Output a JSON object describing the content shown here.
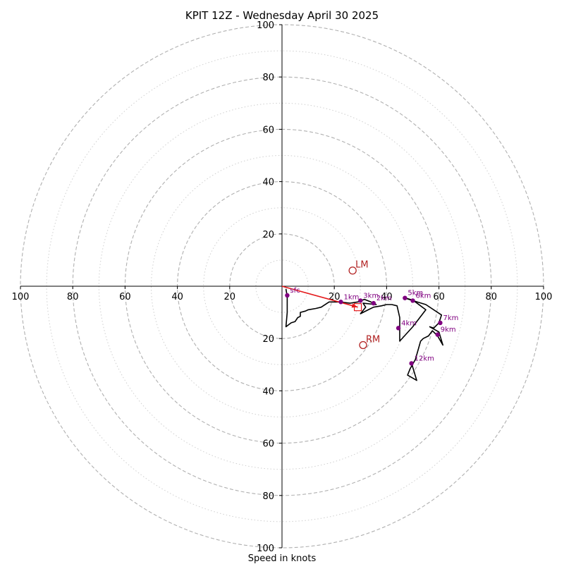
{
  "chart_data": {
    "type": "hodograph",
    "title": "KPIT 12Z - Wednesday April 30 2025",
    "xlabel": "Speed in knots",
    "range": [
      -100,
      100
    ],
    "rings_dashed": [
      20,
      40,
      60,
      80,
      100
    ],
    "rings_dotted": [
      10,
      30,
      50,
      70,
      90
    ],
    "x_tick_labels": [
      "100",
      "80",
      "60",
      "40",
      "20",
      "20",
      "40",
      "60",
      "80",
      "100"
    ],
    "y_tick_labels": [
      "100",
      "80",
      "60",
      "40",
      "20",
      "20",
      "40",
      "60",
      "80",
      "100"
    ],
    "hodograph_trace": [
      [
        1.5,
        -1
      ],
      [
        2,
        -4
      ],
      [
        2,
        -10
      ],
      [
        1.5,
        -15.5
      ],
      [
        3.5,
        -14
      ],
      [
        5,
        -13.5
      ],
      [
        6,
        -12
      ],
      [
        7,
        -11.5
      ],
      [
        7,
        -10
      ],
      [
        9,
        -9.5
      ],
      [
        10,
        -9
      ],
      [
        13,
        -8.5
      ],
      [
        15,
        -8
      ],
      [
        18,
        -6
      ],
      [
        22,
        -6
      ],
      [
        26,
        -6.5
      ],
      [
        29,
        -6
      ],
      [
        31.5,
        -5
      ],
      [
        34,
        -6
      ],
      [
        36,
        -7
      ],
      [
        31,
        -6.5
      ],
      [
        32,
        -8
      ],
      [
        30,
        -10.5
      ],
      [
        33,
        -9
      ],
      [
        35,
        -8
      ],
      [
        38,
        -7.5
      ],
      [
        40,
        -7
      ],
      [
        42,
        -7
      ],
      [
        44,
        -7.5
      ],
      [
        45,
        -12
      ],
      [
        45,
        -21
      ],
      [
        50,
        -15.5
      ],
      [
        55,
        -9
      ],
      [
        51,
        -6
      ],
      [
        49,
        -5
      ],
      [
        47,
        -4.5
      ],
      [
        50,
        -5.5
      ],
      [
        55,
        -7
      ],
      [
        61,
        -11
      ],
      [
        60,
        -14
      ],
      [
        58,
        -16
      ],
      [
        56.5,
        -15.5
      ],
      [
        60,
        -17.5
      ],
      [
        61.5,
        -22.5
      ],
      [
        59.5,
        -19
      ],
      [
        57.5,
        -17
      ],
      [
        56,
        -19
      ],
      [
        54,
        -20
      ],
      [
        53,
        -21
      ],
      [
        51,
        -28
      ],
      [
        49,
        -31.5
      ],
      [
        48,
        -34
      ],
      [
        51.5,
        -36
      ],
      [
        50,
        -31
      ],
      [
        49.5,
        -29
      ]
    ],
    "height_markers": [
      {
        "label": "sfc",
        "u": 2,
        "v": -3.5
      },
      {
        "label": "1km",
        "u": 22.5,
        "v": -6
      },
      {
        "label": "3km",
        "u": 30,
        "v": -5.5
      },
      {
        "label": "2km",
        "u": 35,
        "v": -6.5
      },
      {
        "label": "4km",
        "u": 44.5,
        "v": -16
      },
      {
        "label": "5km",
        "u": 47,
        "v": -4.5
      },
      {
        "label": "6km",
        "u": 50,
        "v": -5.5
      },
      {
        "label": "7km",
        "u": 60.5,
        "v": -14
      },
      {
        "label": "9km",
        "u": 59.5,
        "v": -18.5
      },
      {
        "label": "12km",
        "u": 49.5,
        "v": -29.5
      }
    ],
    "storm_motion": [
      {
        "label": "LM",
        "u": 27,
        "v": 6
      },
      {
        "label": "RM",
        "u": 31,
        "v": -22.5
      }
    ],
    "mean_wind": {
      "u": 29,
      "v": -8
    },
    "shear_vector": {
      "from_u": 0,
      "from_v": 0,
      "to_u": 29,
      "to_v": -8
    },
    "colors": {
      "trace": "#000000",
      "markers": "#800080",
      "storm_motion": "#b22222",
      "shear_vector": "#e41a1c",
      "rings": "#b0b0b0"
    }
  }
}
